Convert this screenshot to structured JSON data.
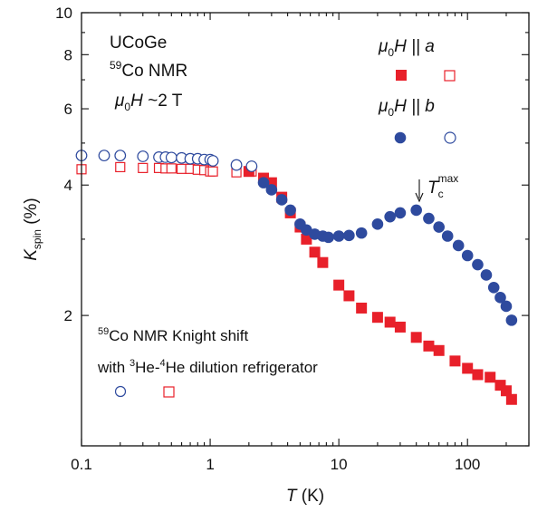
{
  "chart_data": {
    "type": "scatter",
    "x_scale": "log",
    "y_scale": "log",
    "xlim": [
      0.1,
      300
    ],
    "ylim": [
      1,
      10
    ],
    "x_ticks": [
      0.1,
      1,
      10,
      100
    ],
    "x_tick_labels": [
      "0.1",
      "1",
      "10",
      "100"
    ],
    "y_ticks": [
      2,
      4,
      6,
      8,
      10
    ],
    "y_tick_labels": [
      "2",
      "4",
      "6",
      "8",
      "10"
    ],
    "xlabel": {
      "italic": "T",
      "rest": " (K)"
    },
    "ylabel": {
      "italic": "K",
      "sub": "spin",
      "rest": " (%)"
    },
    "grid": false,
    "sample_labels": [
      "UCoGe",
      "59",
      "Co NMR",
      "μ",
      "0",
      "H",
      " ~2 T"
    ],
    "legend": {
      "placement": "top-right",
      "entries": [
        {
          "label_prefix": "μ",
          "label_sub": "0",
          "label_main": "H || a"
        },
        {
          "label_prefix": "μ",
          "label_sub": "0",
          "label_main": "H || b"
        }
      ]
    },
    "inset_note": {
      "line1": [
        "59",
        "Co NMR Knight shift"
      ],
      "line2": [
        "with ",
        "3",
        "He-",
        "4",
        "He dilution refrigerator"
      ]
    },
    "tc_annotation": {
      "label": "T",
      "sub": "c",
      "sup": "max",
      "x": 40,
      "y": 3.5
    },
    "colors": {
      "a_axis": "#e8202a",
      "b_axis": "#2e4a9e"
    },
    "series": [
      {
        "name": "μ0H || a (dilution refrigerator)",
        "marker": "open-square",
        "color": "#e8202a",
        "x": [
          0.1,
          0.2,
          0.3,
          0.4,
          0.45,
          0.5,
          0.6,
          0.7,
          0.8,
          0.9,
          1.0,
          1.05,
          1.6,
          2.1
        ],
        "y": [
          4.35,
          4.4,
          4.38,
          4.38,
          4.37,
          4.37,
          4.36,
          4.36,
          4.34,
          4.33,
          4.3,
          4.3,
          4.28,
          4.3
        ]
      },
      {
        "name": "μ0H || a",
        "marker": "filled-square",
        "color": "#e8202a",
        "x": [
          2.0,
          2.6,
          3.0,
          3.6,
          4.2,
          5.0,
          5.6,
          6.5,
          7.5,
          10,
          12,
          15,
          20,
          25,
          30,
          40,
          50,
          60,
          80,
          100,
          120,
          150,
          180,
          200,
          220
        ],
        "y": [
          4.3,
          4.15,
          4.05,
          3.75,
          3.45,
          3.2,
          3.0,
          2.8,
          2.65,
          2.35,
          2.22,
          2.08,
          1.98,
          1.93,
          1.88,
          1.78,
          1.7,
          1.66,
          1.57,
          1.51,
          1.46,
          1.44,
          1.38,
          1.34,
          1.28
        ]
      },
      {
        "name": "μ0H || b (dilution refrigerator)",
        "marker": "open-circle",
        "color": "#2e4a9e",
        "x": [
          0.1,
          0.15,
          0.2,
          0.3,
          0.4,
          0.45,
          0.5,
          0.6,
          0.7,
          0.8,
          0.9,
          1.0,
          1.05,
          1.6,
          2.1
        ],
        "y": [
          4.68,
          4.68,
          4.68,
          4.66,
          4.64,
          4.64,
          4.63,
          4.62,
          4.6,
          4.6,
          4.58,
          4.58,
          4.55,
          4.45,
          4.42
        ]
      },
      {
        "name": "μ0H || b",
        "marker": "filled-circle",
        "color": "#2e4a9e",
        "x": [
          2.6,
          3.0,
          3.6,
          4.2,
          5.0,
          5.6,
          6.5,
          7.5,
          8.3,
          10,
          12,
          15,
          20,
          25,
          30,
          40,
          50,
          60,
          70,
          85,
          100,
          120,
          140,
          160,
          180,
          200,
          220
        ],
        "y": [
          4.05,
          3.9,
          3.7,
          3.5,
          3.25,
          3.15,
          3.08,
          3.05,
          3.03,
          3.05,
          3.06,
          3.1,
          3.25,
          3.38,
          3.45,
          3.5,
          3.35,
          3.2,
          3.05,
          2.9,
          2.75,
          2.62,
          2.48,
          2.32,
          2.2,
          2.1,
          1.95
        ]
      }
    ]
  }
}
